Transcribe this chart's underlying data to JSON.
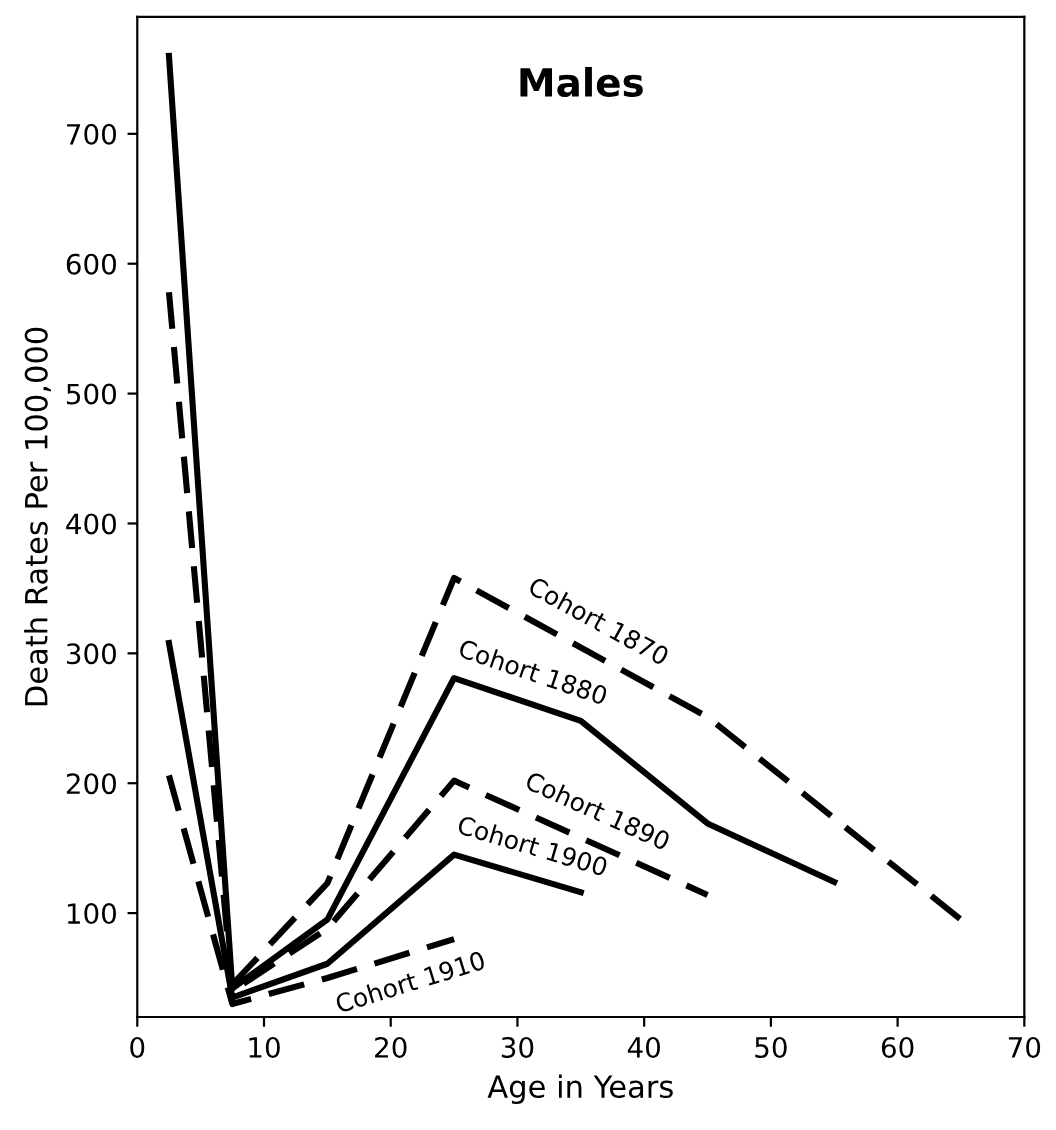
{
  "chart_data": {
    "type": "line",
    "title": "Males",
    "xlabel": "Age in Years",
    "ylabel": "Death Rates Per 100,000",
    "xlim": [
      0,
      70
    ],
    "xticks": [
      0,
      10,
      20,
      30,
      40,
      50,
      60,
      70
    ],
    "ylim": [
      20,
      790
    ],
    "yticks": [
      100,
      200,
      300,
      400,
      500,
      600,
      700
    ],
    "grid": false,
    "marker": "none",
    "series": [
      {
        "name": "Cohort 1870",
        "color": "#000000",
        "line_style": "dashed",
        "x": [
          7.5,
          15,
          25,
          45,
          65
        ],
        "values": [
          45,
          123,
          358,
          251,
          95
        ]
      },
      {
        "name": "Cohort 1880",
        "color": "#000000",
        "line_style": "solid",
        "x": [
          2.5,
          7.5,
          15,
          25,
          35,
          45,
          55
        ],
        "values": [
          760,
          42,
          95,
          281,
          248,
          169,
          124
        ]
      },
      {
        "name": "Cohort 1890",
        "color": "#000000",
        "line_style": "dashed",
        "x": [
          2.5,
          7.5,
          15,
          25,
          45
        ],
        "values": [
          578,
          40,
          88,
          202,
          114
        ]
      },
      {
        "name": "Cohort 1900",
        "color": "#000000",
        "line_style": "solid",
        "x": [
          2.5,
          7.5,
          15,
          25,
          35
        ],
        "values": [
          308,
          35,
          61,
          145,
          116
        ]
      },
      {
        "name": "Cohort 1910",
        "color": "#000000",
        "line_style": "dashed",
        "x": [
          2.5,
          7.5,
          15,
          25
        ],
        "values": [
          206,
          30,
          50,
          80
        ]
      }
    ]
  }
}
